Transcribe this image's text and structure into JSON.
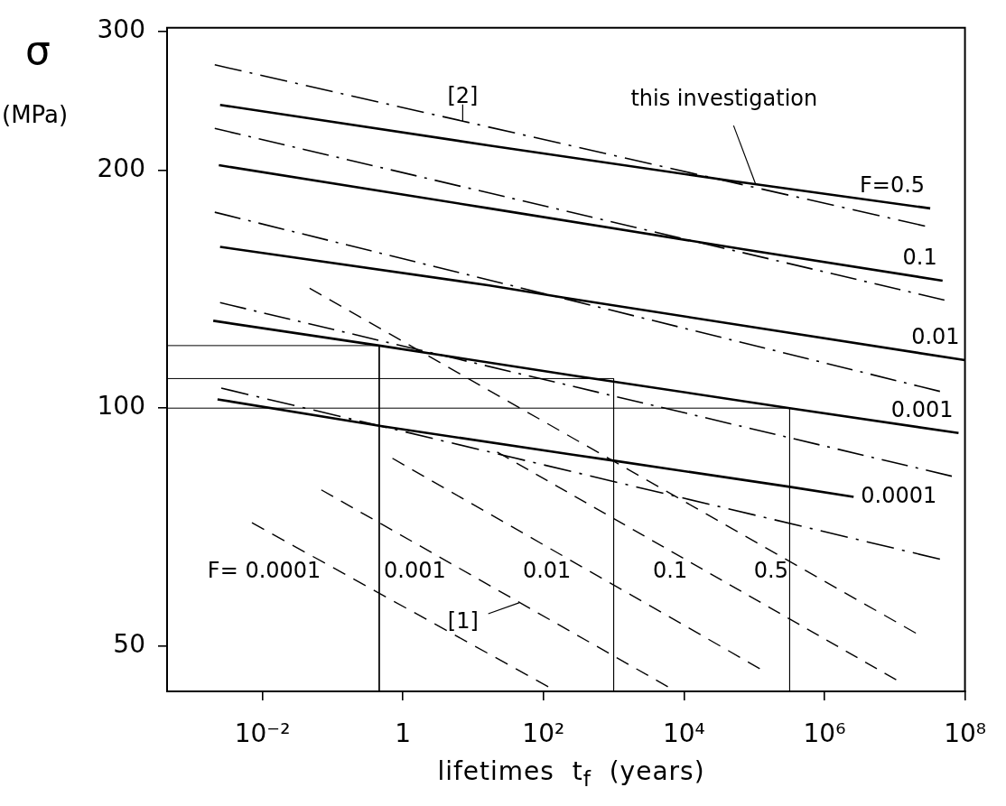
{
  "chart_data": {
    "type": "line",
    "xlabel": "lifetimes  t$_{f}$  (years)",
    "ylabel": "σ\n(MPa)",
    "log": "xy",
    "marker": "none",
    "xlim": [
      0.00044,
      100000000
    ],
    "xticks": [
      {
        "value": 0.01,
        "label": "10⁻²"
      },
      1,
      {
        "value": 100,
        "label": "10²"
      },
      {
        "value": 10000,
        "label": "10⁴"
      },
      {
        "value": 1000000,
        "label": "10⁶"
      },
      {
        "value": 100000000,
        "label": "10⁸"
      }
    ],
    "ylim": [
      43.8,
      303
    ],
    "yticks": [
      50,
      100,
      200,
      300
    ],
    "series": [
      {
        "name": "F=0.5",
        "color": "#000000",
        "line_style": "solid",
        "x": [
          0.0025,
          17,
          46000,
          32000000
        ],
        "values": [
          242,
          215,
          194,
          179
        ]
      },
      {
        "name": "0.1",
        "color": "#000000",
        "line_style": "solid",
        "x": [
          0.0024,
          17,
          68000,
          48000000
        ],
        "values": [
          203,
          179,
          159,
          145
        ]
      },
      {
        "name": "0.01",
        "color": "#000000",
        "line_style": "solid",
        "x": [
          0.0025,
          17,
          195,
          100000000
        ],
        "values": [
          160,
          143,
          138,
          115
        ]
      },
      {
        "name": "0.001",
        "color": "#000000",
        "line_style": "solid",
        "x": [
          0.002,
          0.46,
          260,
          320000,
          81000000
        ],
        "values": [
          129,
          120,
          110,
          100,
          93
        ]
      },
      {
        "name": "0.0001",
        "color": "#000000",
        "line_style": "solid",
        "x": [
          0.0023,
          0.46,
          260,
          1000,
          320000,
          2600000
        ],
        "values": [
          102.6,
          95,
          87.3,
          85.8,
          79.5,
          77.2
        ]
      },
      {
        "color": "#000000",
        "line_style": "dashdot",
        "x": [
          0.0021,
          27000000
        ],
        "values": [
          272,
          170
        ]
      },
      {
        "color": "#000000",
        "line_style": "dashdot",
        "x": [
          0.0021,
          51000000
        ],
        "values": [
          226,
          137
        ]
      },
      {
        "color": "#000000",
        "line_style": "dashdot",
        "x": [
          0.0021,
          44000000
        ],
        "values": [
          177,
          105
        ]
      },
      {
        "color": "#000000",
        "line_style": "dashdot",
        "x": [
          0.0025,
          65000000
        ],
        "values": [
          136,
          82
        ]
      },
      {
        "color": "#000000",
        "line_style": "dashdot",
        "x": [
          0.0026,
          44000000
        ],
        "values": [
          106,
          64.4
        ]
      },
      {
        "name": "F= 0.0001",
        "color": "#000000",
        "line_style": "dashed",
        "x": [
          0.0071,
          117
        ],
        "values": [
          71.6,
          44.4
        ]
      },
      {
        "name": "0.001",
        "color": "#000000",
        "line_style": "dashed",
        "x": [
          0.069,
          5900
        ],
        "values": [
          78.8,
          44.4
        ]
      },
      {
        "name": "0.01",
        "color": "#000000",
        "line_style": "dashed",
        "x": [
          0.71,
          120000
        ],
        "values": [
          86.4,
          46.8
        ]
      },
      {
        "name": "0.1",
        "color": "#000000",
        "line_style": "dashed",
        "x": [
          22,
          10500000
        ],
        "values": [
          88,
          45.3
        ]
      },
      {
        "name": "0.5",
        "color": "#000000",
        "line_style": "dashed",
        "x": [
          0.047,
          20000000
        ],
        "values": [
          141.8,
          51.9
        ]
      },
      {
        "color": "#000000",
        "line_style": "solid",
        "x": [
          0.00044,
          0.46,
          0.46
        ],
        "values": [
          120,
          120,
          43.8
        ]
      },
      {
        "color": "#000000",
        "line_style": "solid",
        "x": [
          0.00044,
          1000,
          1000
        ],
        "values": [
          109,
          109,
          43.8
        ]
      },
      {
        "color": "#000000",
        "line_style": "solid",
        "x": [
          0.00044,
          320000,
          320000
        ],
        "values": [
          100,
          100,
          43.8
        ]
      }
    ],
    "annotations": [
      {
        "text": "this investigation",
        "x": 105000,
        "y": 192
      },
      {
        "text": "[2]",
        "x": 7.1,
        "y": 231
      },
      {
        "text": "[1]",
        "x": 45,
        "y": 56.7
      }
    ]
  }
}
